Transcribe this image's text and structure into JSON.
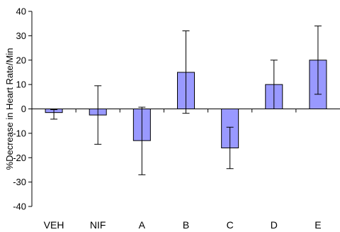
{
  "chart_data": {
    "type": "bar",
    "title": "",
    "xlabel": "",
    "ylabel": "%Decrease in Heart Rate/Min",
    "categories": [
      "VEH",
      "NIF",
      "A",
      "B",
      "C",
      "D",
      "E"
    ],
    "values": [
      -1.5,
      -2.5,
      -13,
      15,
      -16,
      10,
      20
    ],
    "error_upper": [
      -0.3,
      9.5,
      0.7,
      32,
      -7.5,
      20,
      34
    ],
    "error_lower": [
      -4.2,
      -14.5,
      -27,
      -1.8,
      -24.5,
      0,
      6
    ],
    "ylim": [
      -40,
      40
    ],
    "yticks": [
      -40,
      -30,
      -20,
      -10,
      0,
      10,
      20,
      30,
      40
    ],
    "grid": false,
    "legend": "none",
    "bar_color": "#9999ff",
    "bar_edge_color": "#000000"
  }
}
